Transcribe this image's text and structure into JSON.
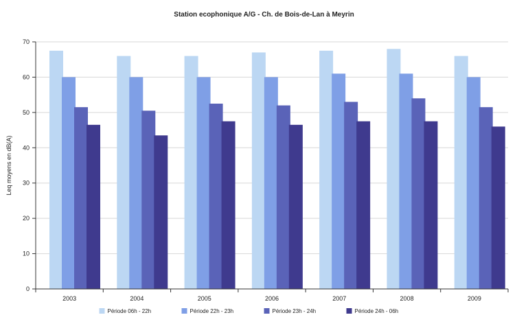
{
  "chart_data": {
    "type": "bar",
    "title": "Station ecophonique A/G - Ch. de Bois-de-Lan à Meyrin",
    "ylabel": "Leq moyens en dB(A)",
    "xlabel": "",
    "categories": [
      "2003",
      "2004",
      "2005",
      "2006",
      "2007",
      "2008",
      "2009"
    ],
    "ylim": [
      0,
      70
    ],
    "yticks": [
      0,
      10,
      20,
      30,
      40,
      50,
      60,
      70
    ],
    "grid": true,
    "legend_position": "bottom",
    "series": [
      {
        "name": "Période 06h - 22h",
        "values": [
          67.5,
          66.0,
          66.0,
          67.0,
          67.5,
          68.0,
          66.0
        ],
        "color": "#bcd7f3"
      },
      {
        "name": "Période 22h - 23h",
        "values": [
          60.0,
          60.0,
          60.0,
          60.0,
          61.0,
          61.0,
          60.0
        ],
        "color": "#7f9fe6"
      },
      {
        "name": "Période 23h - 24h",
        "values": [
          51.5,
          50.5,
          52.5,
          52.0,
          53.0,
          54.0,
          51.5
        ],
        "color": "#5a63b8"
      },
      {
        "name": "Période 24h - 06h",
        "values": [
          46.5,
          43.5,
          47.5,
          46.5,
          47.5,
          47.5,
          46.0
        ],
        "color": "#3f3a8e"
      }
    ]
  }
}
